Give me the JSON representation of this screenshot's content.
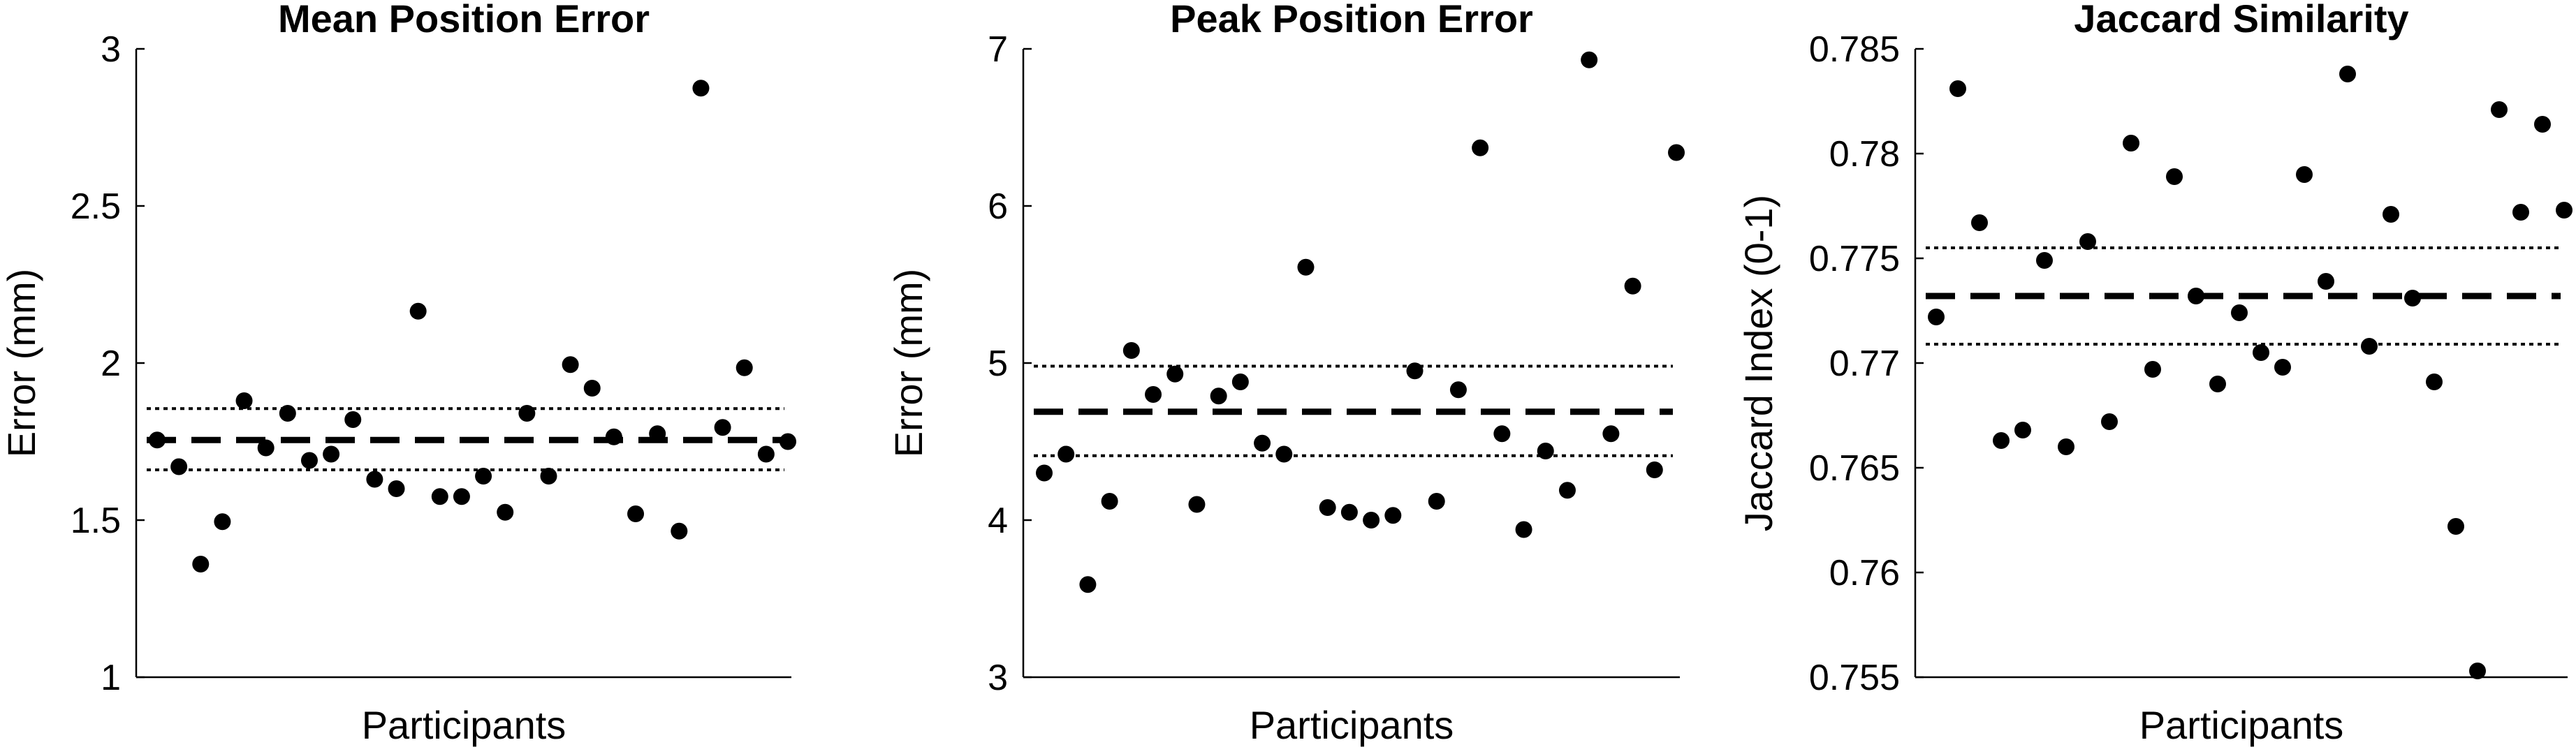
{
  "chart_data": [
    {
      "type": "scatter",
      "title": "Mean Position Error",
      "xlabel": "Participants",
      "ylabel": "Error (mm)",
      "ylim": [
        1,
        3
      ],
      "yticks": [
        1,
        1.5,
        2,
        2.5,
        3
      ],
      "ytick_labels": [
        "1",
        "1.5",
        "2",
        "2.5",
        "3"
      ],
      "grid": false,
      "mean": 1.755,
      "ci_upper": 1.855,
      "ci_lower": 1.66,
      "series": [
        {
          "x": [
            1,
            2,
            3,
            4,
            5,
            6,
            7,
            8,
            9,
            10,
            11,
            12,
            13,
            14,
            15,
            16,
            17,
            18,
            19,
            20,
            21,
            22,
            23,
            24,
            25,
            26,
            27,
            28,
            29,
            30
          ],
          "y": [
            1.755,
            1.67,
            1.36,
            1.495,
            1.88,
            1.73,
            1.84,
            1.69,
            1.71,
            1.82,
            1.63,
            1.6,
            2.165,
            1.575,
            1.575,
            1.64,
            1.525,
            1.84,
            1.64,
            1.995,
            1.92,
            1.765,
            1.52,
            1.775,
            1.465,
            2.875,
            1.795,
            1.985,
            1.71,
            1.75
          ]
        }
      ]
    },
    {
      "type": "scatter",
      "title": "Peak Position Error",
      "xlabel": "Participants",
      "ylabel": "Error (mm)",
      "ylim": [
        3,
        7
      ],
      "yticks": [
        3,
        4,
        5,
        6,
        7
      ],
      "ytick_labels": [
        "3",
        "4",
        "5",
        "6",
        "7"
      ],
      "grid": false,
      "mean": 4.69,
      "ci_upper": 4.98,
      "ci_lower": 4.41,
      "series": [
        {
          "x": [
            1,
            2,
            3,
            4,
            5,
            6,
            7,
            8,
            9,
            10,
            11,
            12,
            13,
            14,
            15,
            16,
            17,
            18,
            19,
            20,
            21,
            22,
            23,
            24,
            25,
            26,
            27,
            28,
            29,
            30
          ],
          "y": [
            4.3,
            4.42,
            3.59,
            4.12,
            5.08,
            4.8,
            4.93,
            4.1,
            4.79,
            4.88,
            4.49,
            4.42,
            5.61,
            4.08,
            4.05,
            4.0,
            4.03,
            4.95,
            4.12,
            4.83,
            6.37,
            4.55,
            3.94,
            4.44,
            4.19,
            6.93,
            4.55,
            5.49,
            4.32,
            6.34
          ]
        }
      ]
    },
    {
      "type": "scatter",
      "title": "Jaccard Similarity",
      "xlabel": "Participants",
      "ylabel": "Jaccard Index (0-1)",
      "ylim": [
        0.755,
        0.785
      ],
      "yticks": [
        0.755,
        0.76,
        0.765,
        0.77,
        0.775,
        0.78,
        0.785
      ],
      "ytick_labels": [
        "0.755",
        "0.76",
        "0.765",
        "0.77",
        "0.775",
        "0.78",
        "0.785"
      ],
      "grid": false,
      "mean": 0.7732,
      "ci_upper": 0.7755,
      "ci_lower": 0.7709,
      "series": [
        {
          "x": [
            1,
            2,
            3,
            4,
            5,
            6,
            7,
            8,
            9,
            10,
            11,
            12,
            13,
            14,
            15,
            16,
            17,
            18,
            19,
            20,
            21,
            22,
            23,
            24,
            25,
            26,
            27,
            28,
            29,
            30
          ],
          "y": [
            0.7722,
            0.7831,
            0.7767,
            0.7663,
            0.7668,
            0.7749,
            0.766,
            0.7758,
            0.7672,
            0.7805,
            0.7697,
            0.7789,
            0.7732,
            0.769,
            0.7724,
            0.7705,
            0.7698,
            0.779,
            0.7739,
            0.7838,
            0.7708,
            0.7771,
            0.7731,
            0.7691,
            0.7622,
            0.7553,
            0.7821,
            0.7772,
            0.7814,
            0.7773
          ]
        }
      ]
    }
  ]
}
